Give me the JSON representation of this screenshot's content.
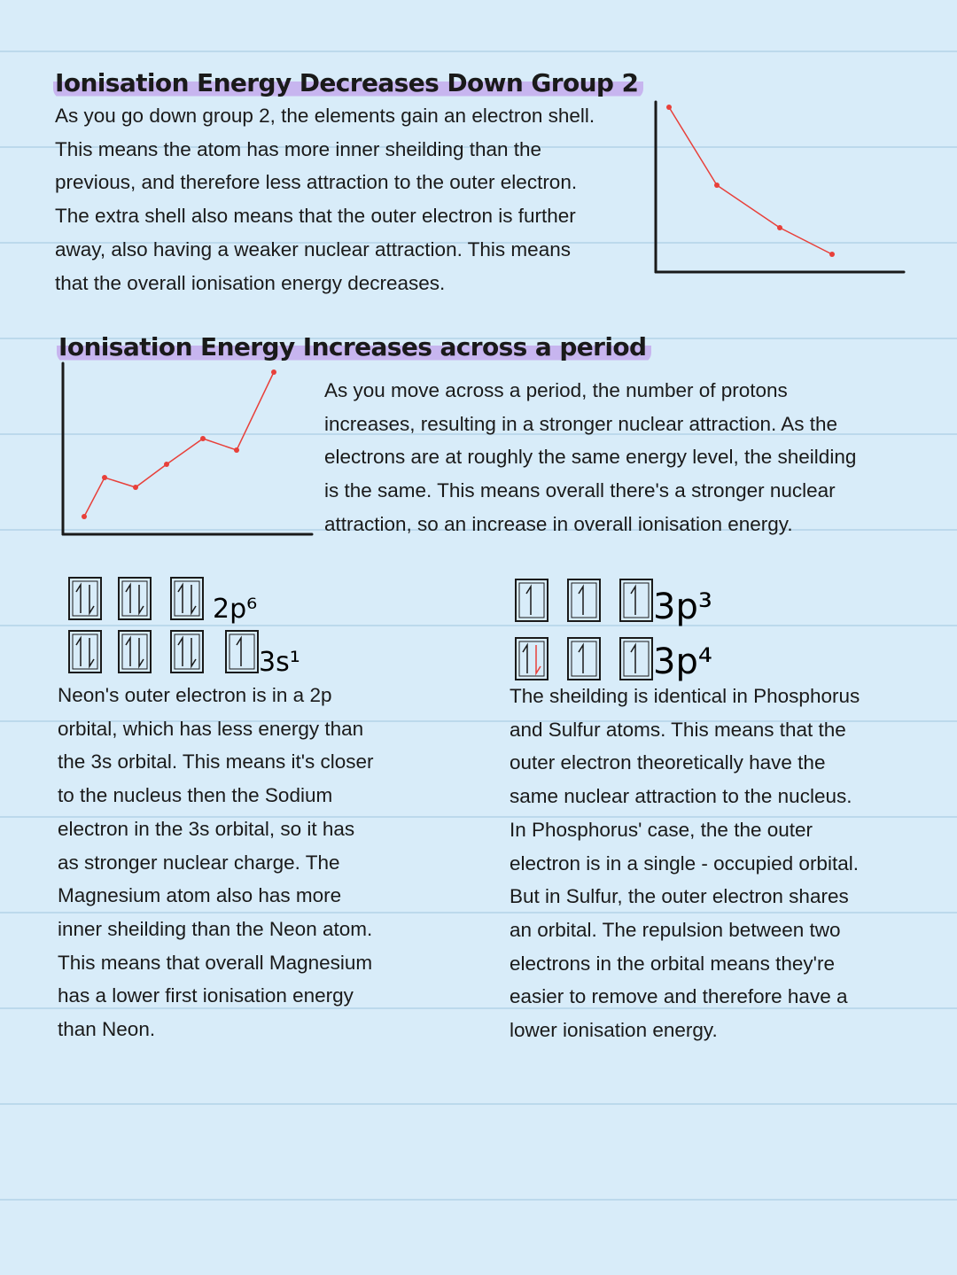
{
  "sections": [
    {
      "heading": "Ionisation Energy Decreases Down Group 2",
      "lines": [
        "As you go down group 2, the elements gain an electron shell.",
        "This means the atom has more inner sheilding than the",
        "previous, and therefore less attraction to the outer electron.",
        "The extra shell also means that the outer electron is further",
        "away, also having a weaker nuclear attraction. This means",
        "that the overall ionisation energy decreases."
      ]
    },
    {
      "heading": "Ionisation Energy Increases across a period",
      "lines": [
        "As you move across a period, the number of protons",
        "increases, resulting in a stronger nuclear attraction. As the",
        "electrons are at roughly the same energy level, the sheilding",
        "is the same. This means overall there's a stronger nuclear",
        "attraction, so an increase in overall ionisation energy."
      ]
    }
  ],
  "comparisons": [
    {
      "orbital_labels": [
        "2p⁶",
        "3s¹"
      ],
      "lines": [
        "Neon's outer electron is in a 2p",
        "orbital, which has less energy than",
        "the 3s orbital. This means it's closer",
        "to the nucleus then the Sodium",
        "electron in the 3s orbital, so it has",
        "as stronger nuclear charge. The",
        "Magnesium atom also has more",
        "inner sheilding than the Neon atom.",
        "This means that overall Magnesium",
        "has a lower first ionisation energy",
        "than Neon."
      ]
    },
    {
      "orbital_labels": [
        "3p³",
        "3p⁴"
      ],
      "lines": [
        "The sheilding is identical in Phosphorus",
        "and Sulfur atoms. This means that the",
        "outer electron theoretically have the",
        "same nuclear attraction to the nucleus.",
        "In Phosphorus' case, the the outer",
        "electron is in a single - occupied orbital.",
        "But in Sulfur, the outer electron shares",
        "an orbital. The repulsion between two",
        "electrons in the orbital means they're",
        "easier to remove and therefore have a",
        "lower ionisation energy."
      ]
    }
  ]
}
